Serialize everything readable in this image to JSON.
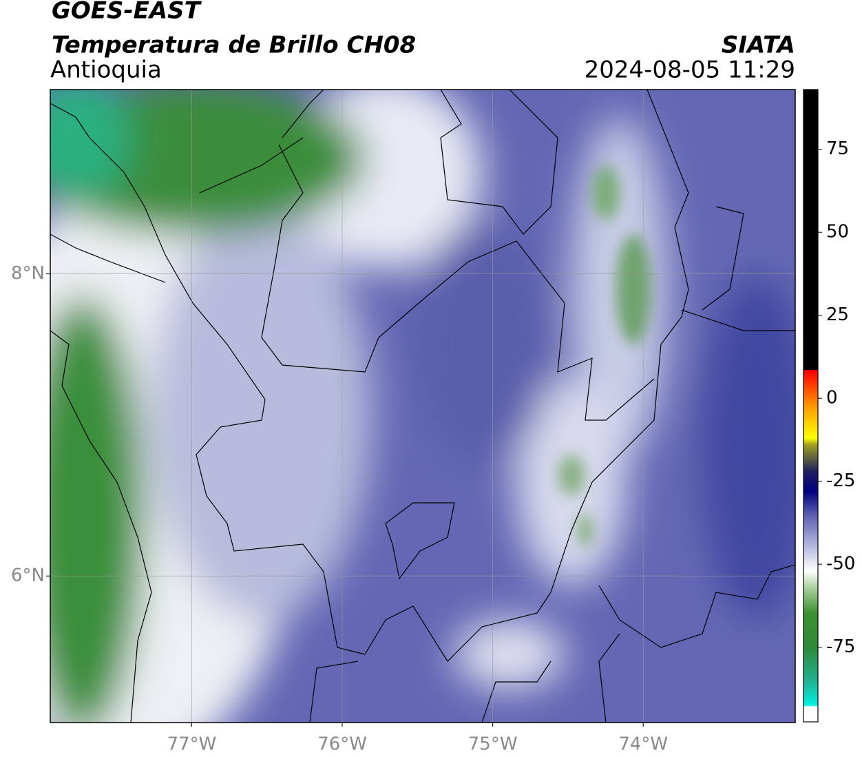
{
  "header": {
    "satellite": "GOES-EAST",
    "product": "Temperatura de Brillo CH08",
    "region": "Antioquia",
    "source": "SIATA",
    "datetime": "2024-08-05 11:29"
  },
  "map": {
    "lonlim": [
      -77.94,
      -72.99
    ],
    "latlim": [
      5.03,
      9.22
    ],
    "lon_ticks": [
      {
        "value": -77,
        "label": "77°W"
      },
      {
        "value": -76,
        "label": "76°W"
      },
      {
        "value": -75,
        "label": "75°W"
      },
      {
        "value": -74,
        "label": "74°W"
      }
    ],
    "lat_ticks": [
      {
        "value": 8,
        "label": "8°N"
      },
      {
        "value": 6,
        "label": "6°N"
      }
    ]
  },
  "colorbar": {
    "lim": [
      -97.5,
      93
    ],
    "ticks": [
      75,
      50,
      25,
      0,
      -25,
      -50,
      -75
    ],
    "stops": [
      {
        "value": -97.5,
        "color": "#ffffff"
      },
      {
        "value": -93,
        "color": "#ffffff"
      },
      {
        "value": -92.5,
        "color": "#00f0e0"
      },
      {
        "value": -85,
        "color": "#20b090"
      },
      {
        "value": -75,
        "color": "#2e8b3a"
      },
      {
        "value": -65,
        "color": "#3a9030"
      },
      {
        "value": -58,
        "color": "#9cc890"
      },
      {
        "value": -52,
        "color": "#ffffff"
      },
      {
        "value": -45,
        "color": "#b8bce0"
      },
      {
        "value": -35,
        "color": "#5a5eb0"
      },
      {
        "value": -28,
        "color": "#000080"
      },
      {
        "value": -22,
        "color": "#202060"
      },
      {
        "value": -14,
        "color": "#a0a020"
      },
      {
        "value": -12,
        "color": "#ffff00"
      },
      {
        "value": -3,
        "color": "#ffa000"
      },
      {
        "value": 6,
        "color": "#ff2000"
      },
      {
        "value": 8.4,
        "color": "#ff0000"
      },
      {
        "value": 8.6,
        "color": "#000000"
      },
      {
        "value": 93,
        "color": "#000000"
      }
    ]
  }
}
